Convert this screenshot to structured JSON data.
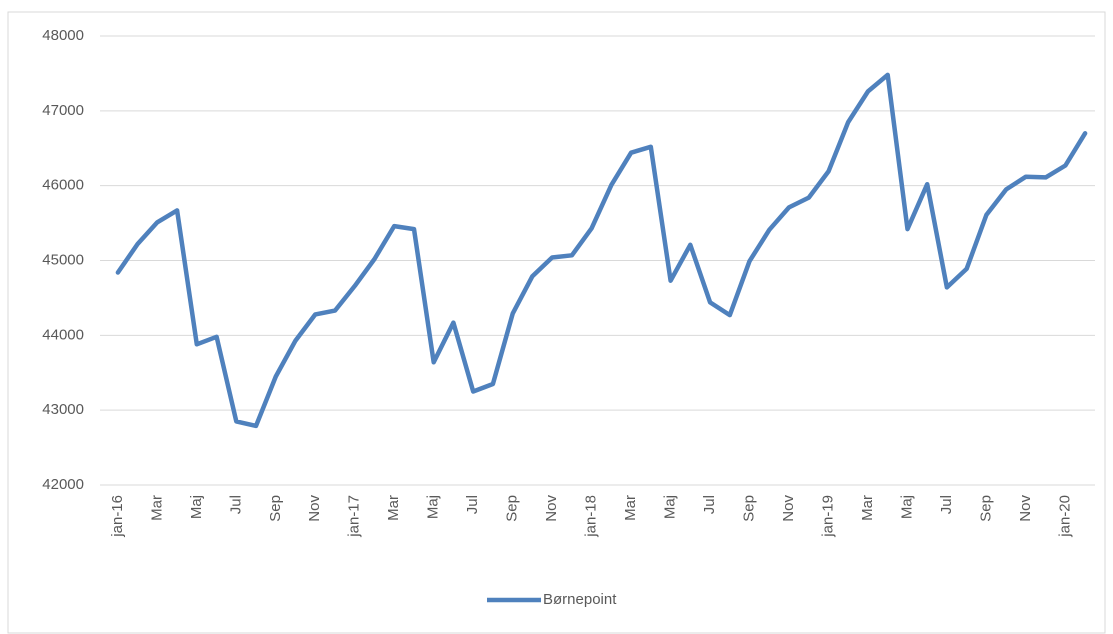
{
  "chart_data": {
    "type": "line",
    "categories": [
      "jan-16",
      null,
      "Mar",
      null,
      "Maj",
      null,
      "Jul",
      null,
      "Sep",
      null,
      "Nov",
      null,
      "jan-17",
      null,
      "Mar",
      null,
      "Maj",
      null,
      "Jul",
      null,
      "Sep",
      null,
      "Nov",
      null,
      "jan-18",
      null,
      "Mar",
      null,
      "Maj",
      null,
      "Jul",
      null,
      "Sep",
      null,
      "Nov",
      null,
      "jan-19",
      null,
      "Mar",
      null,
      "Maj",
      null,
      "Jul",
      null,
      "Sep",
      null,
      "Nov",
      null,
      "jan-20",
      null
    ],
    "series": [
      {
        "name": "Børnepoint",
        "color": "#4f81bd",
        "values": [
          44840,
          45220,
          45510,
          45670,
          43880,
          43980,
          42850,
          42790,
          43450,
          43930,
          44280,
          44330,
          44660,
          45020,
          45460,
          45420,
          43640,
          44170,
          43250,
          43350,
          44290,
          44790,
          45040,
          45070,
          45430,
          46010,
          46440,
          46520,
          44730,
          45210,
          44440,
          44270,
          44990,
          45410,
          45710,
          45840,
          46190,
          46850,
          47260,
          47480,
          45420,
          46020,
          44640,
          44890,
          45610,
          45950,
          46120,
          46110,
          46270,
          46700
        ]
      }
    ],
    "ylim": [
      42000,
      48000
    ],
    "yticks": [
      42000,
      43000,
      44000,
      45000,
      46000,
      47000,
      48000
    ],
    "grid": true,
    "legend": "bottom"
  }
}
